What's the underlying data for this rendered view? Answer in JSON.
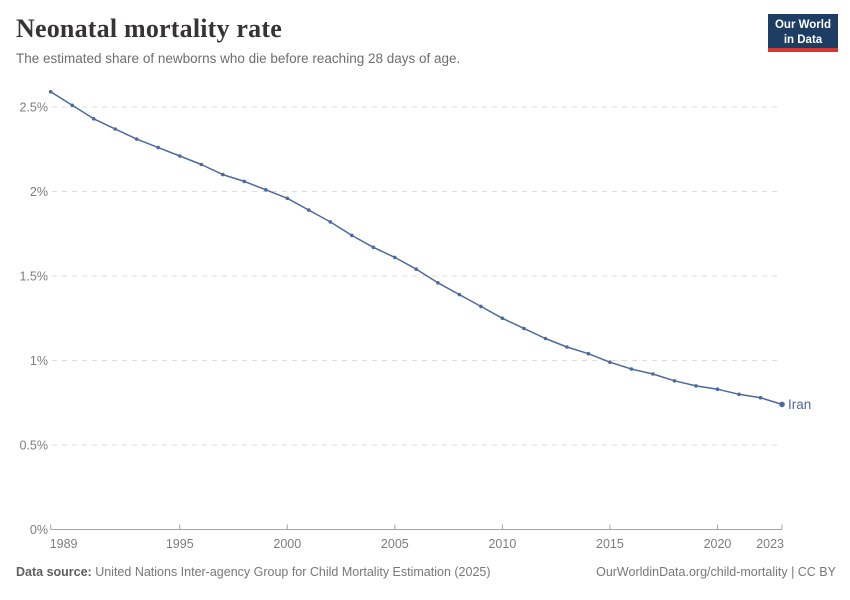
{
  "header": {
    "title": "Neonatal mortality rate",
    "subtitle": "The estimated share of newborns who die before reaching 28 days of age.",
    "logo": {
      "line1": "Our World",
      "line2": "in Data"
    }
  },
  "chart_data": {
    "type": "line",
    "title": "Neonatal mortality rate",
    "entity": "Iran",
    "unit": "%",
    "grid": "horizontal-dashed",
    "legend_position": "series-end-label",
    "x_range": [
      1989,
      2023
    ],
    "ylim": [
      0,
      2.5
    ],
    "yticks": [
      0,
      0.5,
      1,
      1.5,
      2,
      2.5
    ],
    "ytick_labels": [
      "0%",
      "0.5%",
      "1%",
      "1.5%",
      "2%",
      "2.5%"
    ],
    "xticks": [
      1989,
      1995,
      2000,
      2005,
      2010,
      2015,
      2020,
      2023
    ],
    "xtick_labels": [
      "1989",
      "1995",
      "2000",
      "2005",
      "2010",
      "2015",
      "2020",
      "2023"
    ],
    "x": [
      1989,
      1990,
      1991,
      1992,
      1993,
      1994,
      1995,
      1996,
      1997,
      1998,
      1999,
      2000,
      2001,
      2002,
      2003,
      2004,
      2005,
      2006,
      2007,
      2008,
      2009,
      2010,
      2011,
      2012,
      2013,
      2014,
      2015,
      2016,
      2017,
      2018,
      2019,
      2020,
      2021,
      2022,
      2023
    ],
    "series": [
      {
        "name": "Iran",
        "color": "#4C6A9C",
        "values": [
          2.59,
          2.51,
          2.43,
          2.37,
          2.31,
          2.26,
          2.21,
          2.16,
          2.1,
          2.06,
          2.01,
          1.96,
          1.89,
          1.82,
          1.74,
          1.67,
          1.61,
          1.54,
          1.46,
          1.39,
          1.32,
          1.25,
          1.19,
          1.13,
          1.08,
          1.04,
          0.99,
          0.95,
          0.92,
          0.88,
          0.85,
          0.83,
          0.8,
          0.78,
          0.74
        ]
      }
    ]
  },
  "footer": {
    "source_label": "Data source:",
    "source_text": " United Nations Inter-agency Group for Child Mortality Estimation (2025)",
    "link_text": "OurWorldinData.org/child-mortality | CC BY"
  },
  "colors": {
    "line": "#4C6A9C",
    "gridline": "#dcdcdc",
    "axis": "#a5a5a5",
    "tick_label": "#7d7d7d",
    "logo_bg": "#1d3d63",
    "logo_bar": "#d7382d",
    "title_text": "#373334",
    "subtitle_text": "#6e6e6e"
  }
}
